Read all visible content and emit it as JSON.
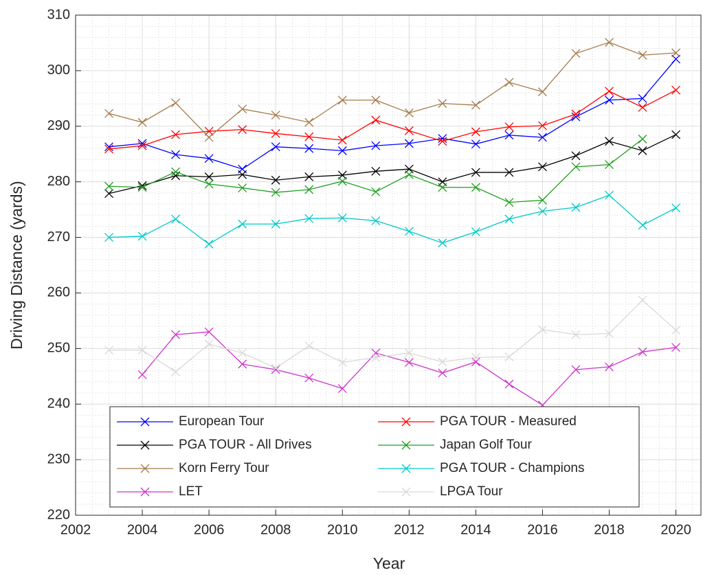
{
  "chart_data": {
    "type": "line",
    "xlabel": "Year",
    "ylabel": "Driving Distance (yards)",
    "x": [
      2003,
      2004,
      2005,
      2006,
      2007,
      2008,
      2009,
      2010,
      2011,
      2012,
      2013,
      2014,
      2015,
      2016,
      2017,
      2018,
      2019,
      2020
    ],
    "xlim": [
      2002,
      2020.75
    ],
    "xticks": [
      2002,
      2004,
      2006,
      2008,
      2010,
      2012,
      2014,
      2016,
      2018,
      2020
    ],
    "ylim": [
      220,
      310
    ],
    "yticks": [
      220,
      230,
      240,
      250,
      260,
      270,
      280,
      290,
      300,
      310
    ],
    "grid": true,
    "minor_grid": true,
    "marker": "x",
    "legend": "south",
    "series": [
      {
        "name": "European Tour",
        "color": "#0000ff",
        "values": [
          286.3,
          286.9,
          284.9,
          284.2,
          282.3,
          286.3,
          286.0,
          285.6,
          286.5,
          286.9,
          287.8,
          286.8,
          288.4,
          288.0,
          291.7,
          294.7,
          295.0,
          302.1
        ]
      },
      {
        "name": "PGA TOUR - Measured",
        "color": "#ff0000",
        "values": [
          285.9,
          286.5,
          288.5,
          289.1,
          289.4,
          288.7,
          288.1,
          287.5,
          291.1,
          289.2,
          287.3,
          289.0,
          289.9,
          290.1,
          292.2,
          296.3,
          293.4,
          296.5
        ]
      },
      {
        "name": "PGA TOUR - All Drives",
        "color": "#000000",
        "values": [
          277.9,
          279.3,
          281.1,
          280.9,
          281.3,
          280.3,
          280.9,
          281.2,
          281.9,
          282.3,
          280.0,
          281.7,
          281.7,
          282.7,
          284.7,
          287.3,
          285.6,
          288.5
        ]
      },
      {
        "name": "Japan Golf Tour",
        "color": "#1f9f1f",
        "values": [
          279.2,
          279.0,
          281.8,
          279.6,
          278.9,
          278.1,
          278.6,
          280.1,
          278.2,
          281.3,
          279.0,
          279.0,
          276.3,
          276.7,
          282.7,
          283.1,
          287.7,
          null
        ]
      },
      {
        "name": "Korn Ferry Tour",
        "color": "#a57a4a",
        "values": [
          292.3,
          290.7,
          294.2,
          288.0,
          293.1,
          292.0,
          290.7,
          294.7,
          294.7,
          292.4,
          294.1,
          293.8,
          297.9,
          296.2,
          303.1,
          305.1,
          302.8,
          303.2
        ]
      },
      {
        "name": "PGA TOUR - Champions",
        "color": "#00c8c8",
        "values": [
          270.0,
          270.2,
          273.3,
          268.8,
          272.4,
          272.4,
          273.4,
          273.5,
          273.0,
          271.1,
          269.0,
          271.0,
          273.3,
          274.7,
          275.4,
          277.6,
          272.2,
          275.3
        ]
      },
      {
        "name": "LET",
        "color": "#cc33cc",
        "values": [
          null,
          245.3,
          252.5,
          253.0,
          247.2,
          246.2,
          244.7,
          242.8,
          249.2,
          247.5,
          245.6,
          247.6,
          243.6,
          239.8,
          246.2,
          246.7,
          249.4,
          250.2
        ]
      },
      {
        "name": "LPGA Tour",
        "color": "#d9d9d9",
        "values": [
          249.7,
          249.7,
          245.8,
          250.8,
          249.2,
          246.5,
          250.5,
          247.5,
          248.4,
          249.2,
          247.6,
          248.4,
          248.5,
          253.4,
          252.5,
          252.7,
          258.7,
          253.3
        ]
      }
    ]
  }
}
